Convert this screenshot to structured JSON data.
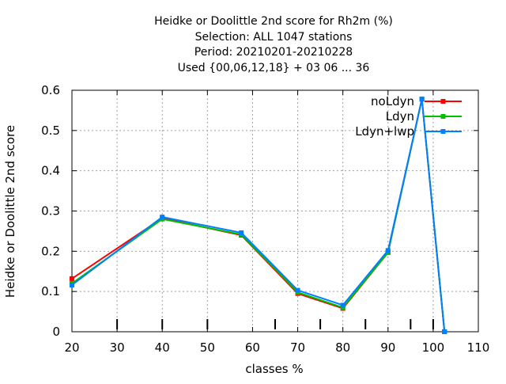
{
  "chart_data": {
    "type": "line",
    "title_lines": [
      "Heidke or Doolittle 2nd score  for Rh2m (%)",
      "Selection: ALL   1047 stations",
      "Period: 20210201-20210228",
      "Used {00,06,12,18} + 03 06 ... 36"
    ],
    "xlabel": "classes %",
    "ylabel": "Heidke or Doolittle 2nd score",
    "xlim": [
      20,
      110
    ],
    "ylim": [
      0,
      0.6
    ],
    "xticks": [
      20,
      30,
      40,
      50,
      60,
      70,
      80,
      90,
      100,
      110
    ],
    "xtick_labels": [
      "20",
      "30",
      "40",
      "50",
      "60",
      "70",
      "80",
      "90",
      "100",
      "110"
    ],
    "yticks": [
      0,
      0.1,
      0.2,
      0.3,
      0.4,
      0.5,
      0.6
    ],
    "ytick_labels": [
      "0",
      "0.1",
      "0.2",
      "0.3",
      "0.4",
      "0.5",
      "0.6"
    ],
    "grid": true,
    "legend_position": "top-right",
    "class_markers": [
      30,
      40,
      50,
      65,
      75,
      85,
      95,
      100
    ],
    "x": [
      20,
      40,
      57.5,
      70,
      80,
      90,
      97.5,
      102.5
    ],
    "series": [
      {
        "name": "noLdyn",
        "color": "#ff0000",
        "values": [
          0.132,
          0.282,
          0.24,
          0.095,
          0.058,
          0.197,
          0.578,
          0.0
        ]
      },
      {
        "name": "Ldyn",
        "color": "#00c000",
        "values": [
          0.12,
          0.28,
          0.242,
          0.098,
          0.06,
          0.197,
          0.578,
          0.0
        ]
      },
      {
        "name": "Ldyn+lwp",
        "color": "#0080ff",
        "values": [
          0.116,
          0.285,
          0.246,
          0.103,
          0.066,
          0.202,
          0.578,
          0.0
        ]
      }
    ]
  }
}
